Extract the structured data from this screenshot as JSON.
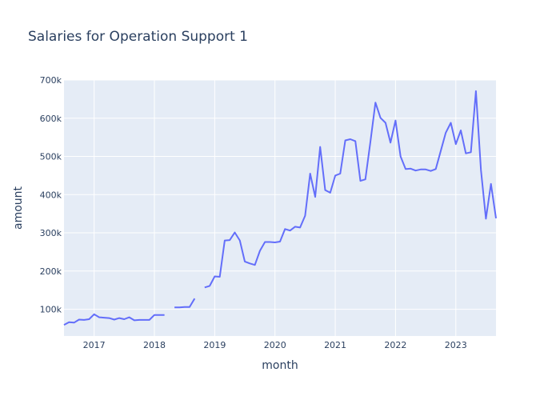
{
  "chart_data": {
    "type": "line",
    "title": "Salaries for Operation Support 1",
    "xlabel": "month",
    "ylabel": "amount",
    "ylim": [
      30000,
      700000
    ],
    "xlim": [
      "2016-07",
      "2023-09"
    ],
    "y_ticks": [
      {
        "value": 100000,
        "label": "100k"
      },
      {
        "value": 200000,
        "label": "200k"
      },
      {
        "value": 300000,
        "label": "300k"
      },
      {
        "value": 400000,
        "label": "400k"
      },
      {
        "value": 500000,
        "label": "500k"
      },
      {
        "value": 600000,
        "label": "600k"
      },
      {
        "value": 700000,
        "label": "700k"
      }
    ],
    "x_ticks": [
      {
        "value": "2017-01",
        "label": "2017"
      },
      {
        "value": "2018-01",
        "label": "2018"
      },
      {
        "value": "2019-01",
        "label": "2019"
      },
      {
        "value": "2020-01",
        "label": "2020"
      },
      {
        "value": "2021-01",
        "label": "2021"
      },
      {
        "value": "2022-01",
        "label": "2022"
      },
      {
        "value": "2023-01",
        "label": "2023"
      }
    ],
    "grid": true,
    "colors": {
      "line": "#636efa",
      "plot_bg": "#e5ecf6",
      "grid": "#ffffff",
      "text": "#2a3f5f"
    },
    "series": [
      {
        "x": [
          "2016-07",
          "2016-08",
          "2016-09",
          "2016-10",
          "2016-11",
          "2016-12",
          "2017-01",
          "2017-02",
          "2017-03",
          "2017-04",
          "2017-05",
          "2017-06",
          "2017-07",
          "2017-08",
          "2017-09",
          "2017-10",
          "2017-11",
          "2017-12",
          "2018-01",
          "2018-02",
          "2018-03",
          "2018-04",
          "2018-05",
          "2018-06",
          "2018-07",
          "2018-08",
          "2018-09",
          "2018-10",
          "2018-11",
          "2018-12",
          "2019-01",
          "2019-02",
          "2019-03",
          "2019-04",
          "2019-05",
          "2019-06",
          "2019-07",
          "2019-08",
          "2019-09",
          "2019-10",
          "2019-11",
          "2019-12",
          "2020-01",
          "2020-02",
          "2020-03",
          "2020-04",
          "2020-05",
          "2020-06",
          "2020-07",
          "2020-08",
          "2020-09",
          "2020-10",
          "2020-11",
          "2020-12",
          "2021-01",
          "2021-02",
          "2021-03",
          "2021-04",
          "2021-05",
          "2021-06",
          "2021-07",
          "2021-08",
          "2021-09",
          "2021-10",
          "2021-11",
          "2021-12",
          "2022-01",
          "2022-02",
          "2022-03",
          "2022-04",
          "2022-05",
          "2022-06",
          "2022-07",
          "2022-08",
          "2022-09",
          "2022-10",
          "2022-11",
          "2022-12",
          "2023-01",
          "2023-02",
          "2023-03",
          "2023-04",
          "2023-05",
          "2023-06",
          "2023-07",
          "2023-08",
          "2023-09"
        ],
        "y": [
          59000,
          66000,
          65000,
          73000,
          72000,
          74000,
          87000,
          79000,
          78000,
          77000,
          73000,
          77000,
          74000,
          79000,
          71000,
          72000,
          72000,
          72000,
          85000,
          85000,
          85000,
          null,
          105000,
          105000,
          106000,
          106000,
          128000,
          null,
          157000,
          161000,
          186000,
          185000,
          280000,
          281000,
          301000,
          280000,
          225000,
          220000,
          216000,
          253000,
          276000,
          276000,
          275000,
          277000,
          310000,
          306000,
          316000,
          314000,
          345000,
          455000,
          394000,
          525000,
          412000,
          405000,
          450000,
          455000,
          542000,
          545000,
          540000,
          436000,
          440000,
          538000,
          641000,
          601000,
          588000,
          536000,
          594000,
          500000,
          467000,
          468000,
          463000,
          466000,
          466000,
          462000,
          467000,
          514000,
          562000,
          588000,
          532000,
          568000,
          508000,
          511000,
          671000,
          464000,
          337000,
          428000,
          338000
        ]
      }
    ]
  }
}
